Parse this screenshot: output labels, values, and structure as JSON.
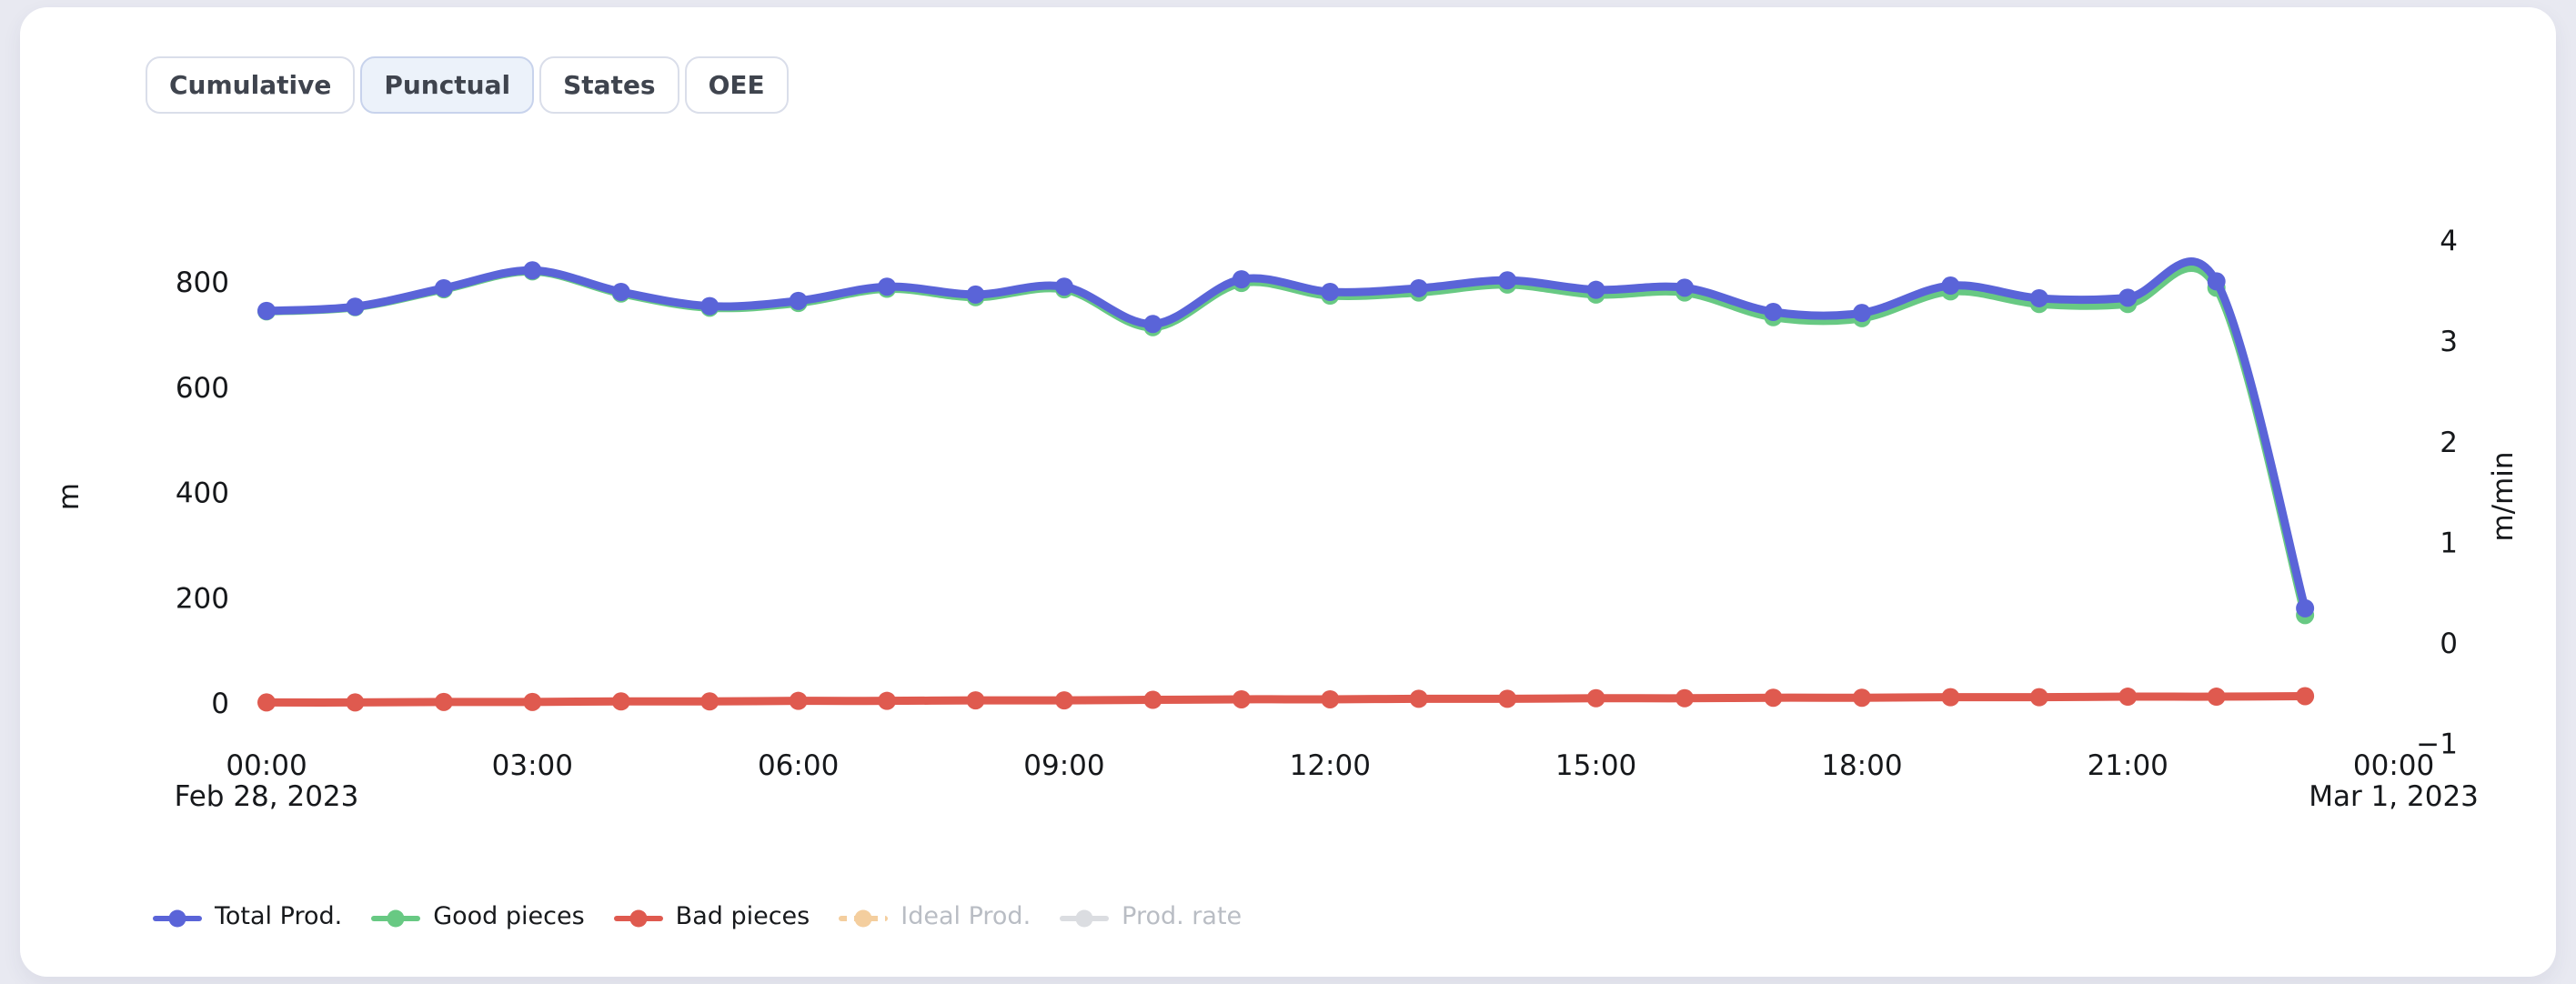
{
  "page": {
    "background": "#e8e9f1",
    "card_background": "#ffffff"
  },
  "toolbar": {
    "tabs": [
      {
        "label": "Cumulative",
        "active": false
      },
      {
        "label": "Punctual",
        "active": true
      },
      {
        "label": "States",
        "active": false
      },
      {
        "label": "OEE",
        "active": false
      }
    ]
  },
  "chart_data": {
    "type": "line",
    "title": "",
    "x": [
      "00:00",
      "01:00",
      "02:00",
      "03:00",
      "04:00",
      "05:00",
      "06:00",
      "07:00",
      "08:00",
      "09:00",
      "10:00",
      "11:00",
      "12:00",
      "13:00",
      "14:00",
      "15:00",
      "16:00",
      "17:00",
      "18:00",
      "19:00",
      "20:00",
      "21:00",
      "22:00",
      "23:00"
    ],
    "x_ticks": [
      {
        "time": "00:00",
        "date": "Feb 28, 2023"
      },
      {
        "time": "03:00",
        "date": ""
      },
      {
        "time": "06:00",
        "date": ""
      },
      {
        "time": "09:00",
        "date": ""
      },
      {
        "time": "12:00",
        "date": ""
      },
      {
        "time": "15:00",
        "date": ""
      },
      {
        "time": "18:00",
        "date": ""
      },
      {
        "time": "21:00",
        "date": ""
      },
      {
        "time": "00:00",
        "date": "Mar 1, 2023"
      }
    ],
    "y_left": {
      "title": "m",
      "ticks": [
        0,
        200,
        400,
        600,
        800
      ],
      "range": [
        -100,
        940
      ]
    },
    "y_right": {
      "title": "m/min",
      "ticks": [
        -1,
        0,
        1,
        2,
        3,
        4
      ],
      "range": [
        -1.45,
        4.6
      ]
    },
    "grid": false,
    "legend_position": "bottom-left",
    "series": [
      {
        "name": "Total Prod.",
        "color": "#5A64D8",
        "style": "solid",
        "enabled": true,
        "axis": "left",
        "values": [
          745,
          753,
          788,
          822,
          781,
          754,
          764,
          791,
          776,
          791,
          720,
          805,
          781,
          788,
          803,
          785,
          789,
          743,
          741,
          793,
          769,
          770,
          801,
          180
        ]
      },
      {
        "name": "Good pieces",
        "color": "#68C983",
        "style": "solid",
        "enabled": true,
        "axis": "left",
        "values": [
          744,
          752,
          786,
          820,
          778,
          751,
          760,
          787,
          771,
          786,
          714,
          798,
          774,
          780,
          795,
          776,
          780,
          733,
          731,
          782,
          758,
          758,
          789,
          167
        ]
      },
      {
        "name": "Bad pieces",
        "color": "#DF5A4F",
        "style": "solid",
        "enabled": true,
        "axis": "left",
        "values": [
          1,
          1,
          2,
          2,
          3,
          3,
          4,
          4,
          5,
          5,
          6,
          7,
          7,
          8,
          8,
          9,
          9,
          10,
          10,
          11,
          11,
          12,
          12,
          13
        ]
      },
      {
        "name": "Ideal Prod.",
        "color": "#F4CE9E",
        "style": "dotted",
        "enabled": false,
        "axis": "right",
        "values": null
      },
      {
        "name": "Prod. rate",
        "color": "#DBDDE1",
        "style": "solid",
        "enabled": false,
        "axis": "right",
        "values": null
      }
    ]
  }
}
